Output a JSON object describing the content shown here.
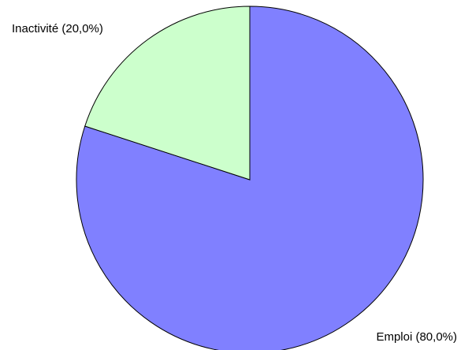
{
  "chart_data": {
    "type": "pie",
    "values": [
      80,
      20
    ],
    "value_labels": [
      "Emploi (80,0%)",
      "Inactivité (20,0%)"
    ],
    "colors": [
      "#8080ff",
      "#ccffcc"
    ]
  }
}
